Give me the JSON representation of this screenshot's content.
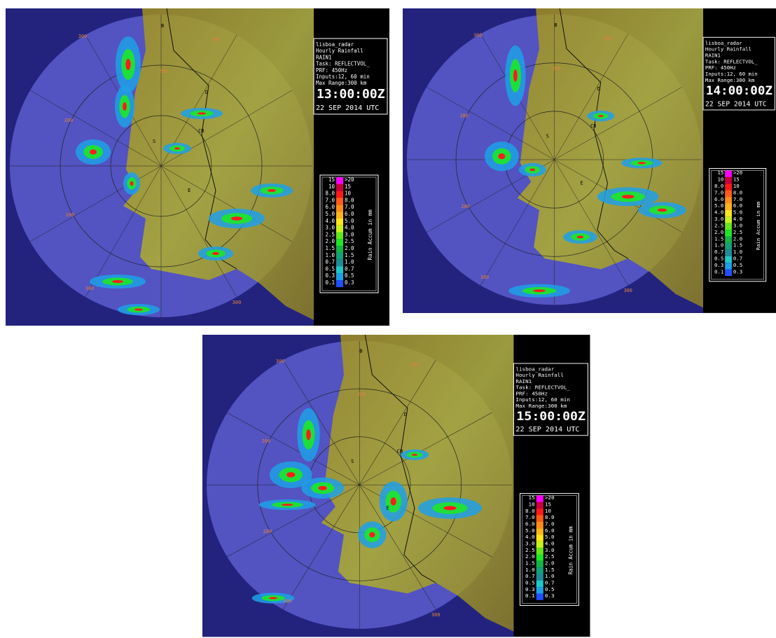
{
  "info": {
    "site": "lisboa_radar",
    "product": "Hourly Rainfall",
    "code": "RAIN1",
    "task": "Task: REFLECTVOL_",
    "prf": "PRF: 450Hz",
    "inputs": "Inputs:12, 60 min",
    "range": "Max Range:300 km",
    "date": "22 SEP 2014 UTC"
  },
  "panels": [
    {
      "time": "13:00:00Z"
    },
    {
      "time": "14:00:00Z"
    },
    {
      "time": "15:00:00Z"
    }
  ],
  "legend": {
    "title": "Rain Accum in mm",
    "low": [
      "15",
      "10",
      "8.0",
      "7.0",
      "6.0",
      "5.0",
      "4.0",
      "3.0",
      "2.5",
      "2.0",
      "1.5",
      "1.0",
      "0.7",
      "0.5",
      "0.3",
      "0.1"
    ],
    "high": [
      ">20",
      "15",
      "10",
      "8.0",
      "7.0",
      "6.0",
      "5.0",
      "4.0",
      "3.0",
      "2.5",
      "2.0",
      "1.5",
      "1.0",
      "0.7",
      "0.5",
      "0.3"
    ]
  },
  "ring_labels": [
    "200",
    "300"
  ],
  "site_labels": [
    "B",
    "CB",
    "S",
    "E",
    "D"
  ]
}
